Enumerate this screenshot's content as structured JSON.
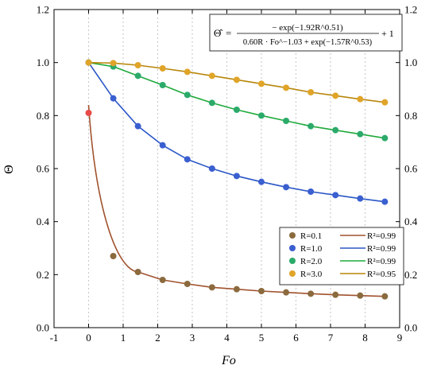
{
  "chart_data": {
    "type": "scatter",
    "xlabel": "Fo",
    "ylabel": "Θ",
    "xlim": [
      -1,
      9
    ],
    "ylim": [
      0.0,
      1.2
    ],
    "x_ticks": [
      "-1",
      "0",
      "1",
      "2",
      "3",
      "4",
      "5",
      "6",
      "7",
      "8",
      "9"
    ],
    "y_ticks": [
      "0.0",
      "0.2",
      "0.4",
      "0.6",
      "0.8",
      "1.0",
      "1.2"
    ],
    "grid": "vertical-dotted",
    "legend_position": "bottom-right",
    "equation": {
      "lhs": "Θ̂",
      "numerator": "− exp(−1.92R^0.51)",
      "denominator": "0.60R · Fo^−1.03 + exp(−1.57R^0.53)",
      "suffix": "+ 1"
    },
    "series": [
      {
        "name": "R=0.1",
        "fit_label": "R²=0.99",
        "R": 0.1,
        "marker_color": "#8B6A3E",
        "line_color": "#A0522D",
        "x": [
          0,
          0.714,
          1.428,
          2.142,
          2.857,
          3.571,
          4.285,
          5.0,
          5.714,
          6.428,
          7.142,
          7.857,
          8.571
        ],
        "y": [
          0.81,
          0.27,
          0.21,
          0.18,
          0.165,
          0.152,
          0.145,
          0.138,
          0.133,
          0.128,
          0.124,
          0.121,
          0.118
        ]
      },
      {
        "name": "R=1.0",
        "fit_label": "R²=0.99",
        "R": 1.0,
        "marker_color": "#3A5FD0",
        "line_color": "#2A56C6",
        "x": [
          0,
          0.714,
          1.428,
          2.142,
          2.857,
          3.571,
          4.285,
          5.0,
          5.714,
          6.428,
          7.142,
          7.857,
          8.571
        ],
        "y": [
          1.0,
          0.865,
          0.76,
          0.688,
          0.635,
          0.6,
          0.572,
          0.55,
          0.53,
          0.513,
          0.5,
          0.487,
          0.475
        ]
      },
      {
        "name": "R=2.0",
        "fit_label": "R²=0.99",
        "R": 2.0,
        "marker_color": "#2BAA6A",
        "line_color": "#1FAA3C",
        "x": [
          0,
          0.714,
          1.428,
          2.142,
          2.857,
          3.571,
          4.285,
          5.0,
          5.714,
          6.428,
          7.142,
          7.857,
          8.571
        ],
        "y": [
          1.0,
          0.985,
          0.95,
          0.915,
          0.878,
          0.848,
          0.822,
          0.8,
          0.78,
          0.76,
          0.745,
          0.73,
          0.715
        ]
      },
      {
        "name": "R=3.0",
        "fit_label": "R²=0.95",
        "R": 3.0,
        "marker_color": "#E0A428",
        "line_color": "#B8860B",
        "x": [
          0,
          0.714,
          1.428,
          2.142,
          2.857,
          3.571,
          4.285,
          5.0,
          5.714,
          6.428,
          7.142,
          7.857,
          8.571
        ],
        "y": [
          1.0,
          0.998,
          0.99,
          0.978,
          0.965,
          0.95,
          0.935,
          0.92,
          0.905,
          0.888,
          0.875,
          0.862,
          0.85
        ]
      }
    ]
  }
}
